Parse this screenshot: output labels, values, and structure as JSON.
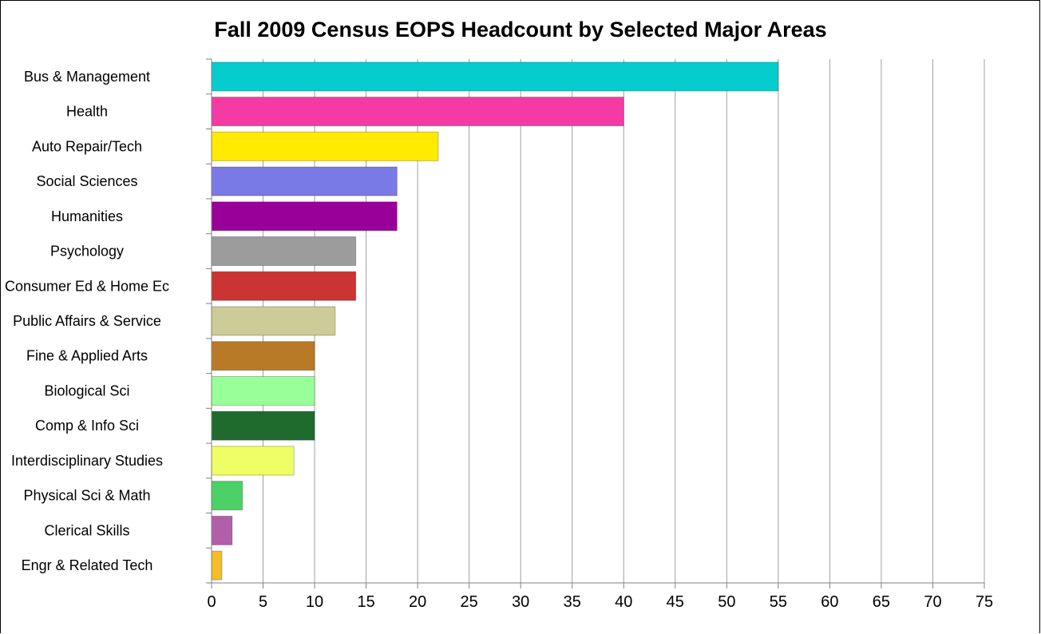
{
  "chart_data": {
    "type": "bar",
    "orientation": "horizontal",
    "title": "Fall 2009 Census EOPS Headcount by Selected Major Areas",
    "categories": [
      "Bus & Management",
      "Health",
      "Auto Repair/Tech",
      "Social Sciences",
      "Humanities",
      "Psychology",
      "Consumer Ed & Home Ec",
      "Public Affairs & Service",
      "Fine & Applied Arts",
      "Biological Sci",
      "Comp & Info Sci",
      "Interdisciplinary Studies",
      "Physical Sci & Math",
      "Clerical Skills",
      "Engr & Related Tech"
    ],
    "values": [
      55,
      40,
      22,
      18,
      18,
      14,
      14,
      12,
      10,
      10,
      10,
      8,
      3,
      2,
      1
    ],
    "colors": [
      "#06CDCD",
      "#F53BA3",
      "#FFEA00",
      "#7A7AE6",
      "#990099",
      "#9C9C9C",
      "#CC3333",
      "#CCCC99",
      "#B87A26",
      "#99FF99",
      "#1F6B2E",
      "#EEFF66",
      "#4CD166",
      "#B25FAA",
      "#F5BE26"
    ],
    "xlim": [
      0,
      75
    ],
    "xticks": [
      "0",
      "5",
      "10",
      "15",
      "20",
      "25",
      "30",
      "35",
      "40",
      "45",
      "50",
      "55",
      "60",
      "65",
      "70",
      "75"
    ],
    "grid": "vertical",
    "legend": "none",
    "xlabel": "",
    "ylabel": ""
  }
}
